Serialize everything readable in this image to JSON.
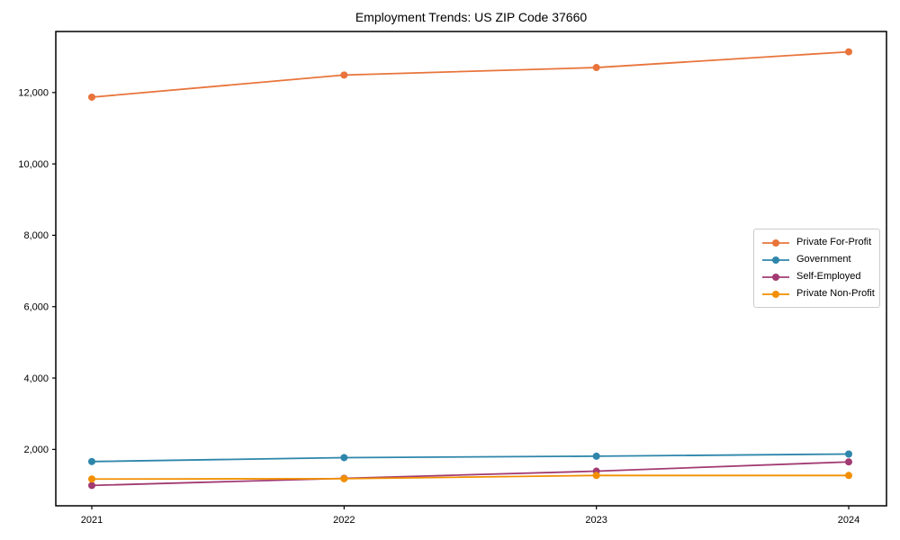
{
  "title": "Employment Trends: US ZIP Code 37660",
  "chart_data": {
    "type": "line",
    "title": "Employment Trends: US ZIP Code 37660",
    "categories": [
      "2021",
      "2022",
      "2023",
      "2024"
    ],
    "series": [
      {
        "name": "Private For-Profit",
        "color": "#E8743B",
        "values": [
          11870,
          12490,
          12700,
          13140
        ]
      },
      {
        "name": "Government",
        "color": "#2E86AB",
        "values": [
          1660,
          1770,
          1810,
          1870
        ]
      },
      {
        "name": "Self-Employed",
        "color": "#A23B72",
        "values": [
          990,
          1190,
          1390,
          1650
        ]
      },
      {
        "name": "Private Non-Profit",
        "color": "#F18F01",
        "values": [
          1170,
          1180,
          1270,
          1270
        ]
      }
    ],
    "xlabel": "",
    "ylabel": "",
    "ylim": [
      420,
      13710
    ],
    "yticks": [
      2000,
      4000,
      6000,
      8000,
      10000,
      12000
    ],
    "ytick_labels": [
      "2,000",
      "4,000",
      "6,000",
      "8,000",
      "10,000",
      "12,000"
    ],
    "grid": false,
    "marker": "o",
    "legend_position": "center-right",
    "axis_color": "#000000",
    "background_color": "#ffffff"
  }
}
